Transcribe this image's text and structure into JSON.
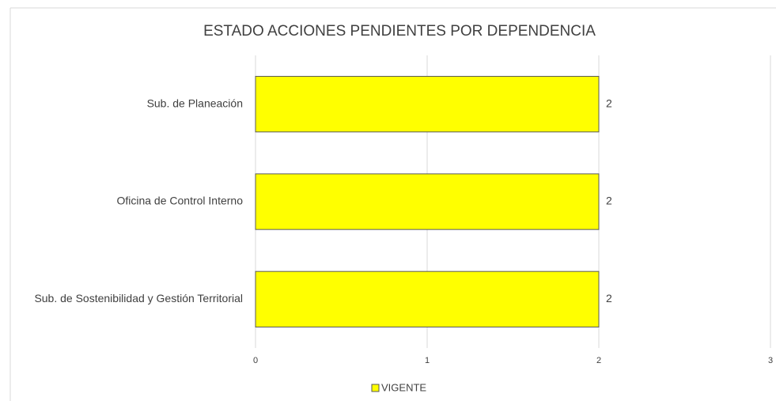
{
  "chart_data": {
    "type": "bar",
    "orientation": "horizontal",
    "title": "ESTADO ACCIONES PENDIENTES POR DEPENDENCIA",
    "categories": [
      "Sub. de Planeación",
      "Oficina de Control Interno",
      "Sub. de Sostenibilidad y Gestión Territorial"
    ],
    "series": [
      {
        "name": "VIGENTE",
        "color": "#ffff00",
        "values": [
          2,
          2,
          2
        ]
      }
    ],
    "xlim": [
      0,
      3
    ],
    "xticks": [
      0,
      1,
      2,
      3
    ],
    "grid": true,
    "legend": "bottom"
  }
}
